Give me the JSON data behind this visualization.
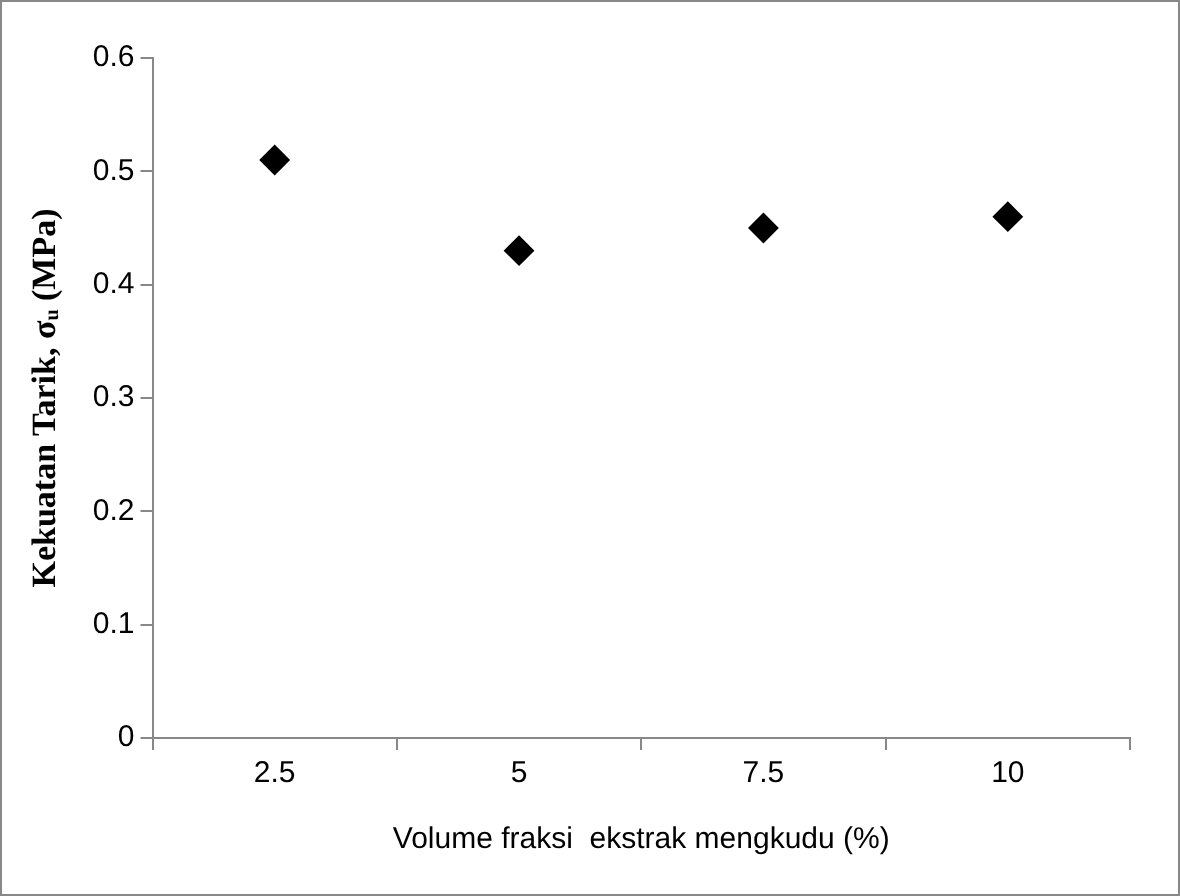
{
  "chart_data": {
    "type": "scatter",
    "xlabel": "Volume fraksi  ekstrak mengkudu (%)",
    "ylabel": "Kekuatan Tarik, σᵤ (MPa)",
    "categories": [
      "2.5",
      "5",
      "7.5",
      "10"
    ],
    "series": [
      {
        "color": "#000000",
        "values": [
          0.51,
          0.43,
          0.45,
          0.46
        ]
      }
    ],
    "ylim": [
      0,
      0.6
    ],
    "yticks": [
      0,
      0.1,
      0.2,
      0.3,
      0.4,
      0.5,
      0.6
    ],
    "grid": false,
    "legend": false,
    "marker": "diamond"
  }
}
